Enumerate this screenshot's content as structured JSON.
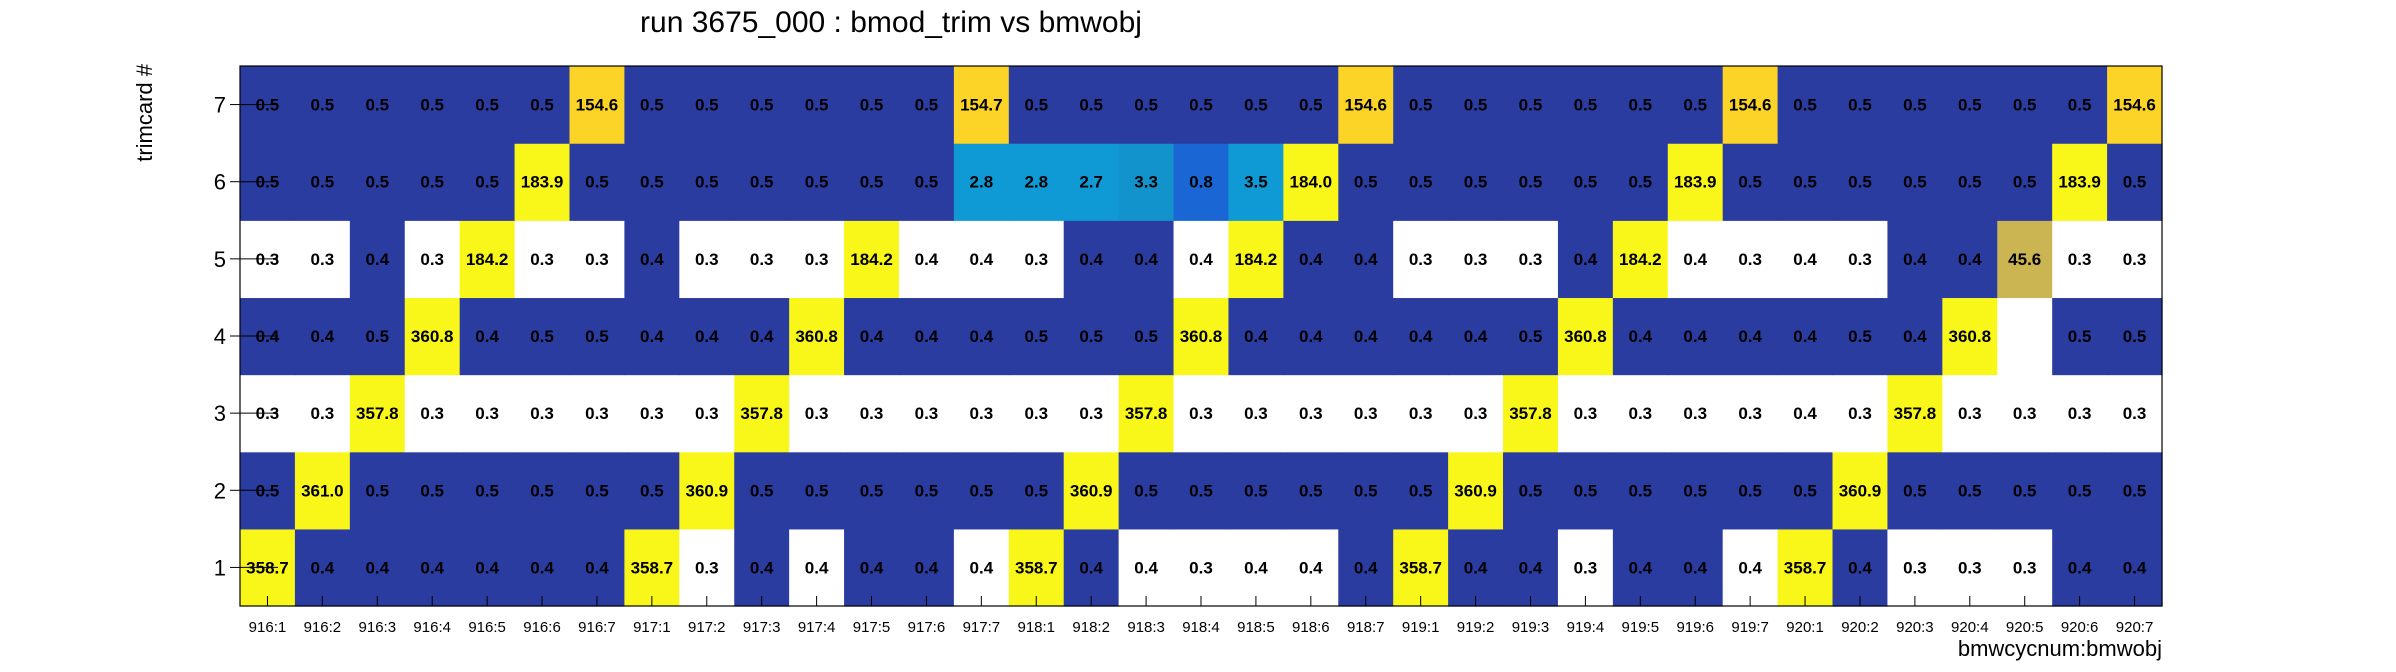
{
  "chart_data": {
    "type": "heatmap",
    "title": "run 3675_000 : bmod_trim vs bmwobj",
    "xlabel": "bmwcycnum:bmwobj",
    "ylabel": "trimcard #",
    "categories": [
      "916:1",
      "916:2",
      "916:3",
      "916:4",
      "916:5",
      "916:6",
      "916:7",
      "917:1",
      "917:2",
      "917:3",
      "917:4",
      "917:5",
      "917:6",
      "917:7",
      "918:1",
      "918:2",
      "918:3",
      "918:4",
      "918:5",
      "918:6",
      "918:7",
      "919:1",
      "919:2",
      "919:3",
      "919:4",
      "919:5",
      "919:6",
      "919:7",
      "920:1",
      "920:2",
      "920:3",
      "920:4",
      "920:5",
      "920:6",
      "920:7"
    ],
    "y_categories": [
      "1",
      "2",
      "3",
      "4",
      "5",
      "6",
      "7"
    ],
    "rows": [
      {
        "y": "1",
        "values": [
          358.7,
          0.4,
          0.4,
          0.4,
          0.4,
          0.4,
          0.4,
          358.7,
          0.3,
          0.4,
          0.4,
          0.4,
          0.4,
          0.4,
          358.7,
          0.4,
          0.4,
          0.3,
          0.4,
          0.4,
          0.4,
          358.7,
          0.4,
          0.4,
          0.3,
          0.4,
          0.4,
          0.4,
          358.7,
          0.4,
          0.3,
          0.3,
          0.3,
          0.4,
          0.4
        ]
      },
      {
        "y": "2",
        "values": [
          0.5,
          361.0,
          0.5,
          0.5,
          0.5,
          0.5,
          0.5,
          0.5,
          360.9,
          0.5,
          0.5,
          0.5,
          0.5,
          0.5,
          0.5,
          360.9,
          0.5,
          0.5,
          0.5,
          0.5,
          0.5,
          0.5,
          360.9,
          0.5,
          0.5,
          0.5,
          0.5,
          0.5,
          0.5,
          360.9,
          0.5,
          0.5,
          0.5,
          0.5,
          0.5
        ]
      },
      {
        "y": "3",
        "values": [
          0.3,
          0.3,
          357.8,
          0.3,
          0.3,
          0.3,
          0.3,
          0.3,
          0.3,
          357.8,
          0.3,
          0.3,
          0.3,
          0.3,
          0.3,
          0.3,
          357.8,
          0.3,
          0.3,
          0.3,
          0.3,
          0.3,
          0.3,
          357.8,
          0.3,
          0.3,
          0.3,
          0.3,
          0.4,
          0.3,
          357.8,
          0.3,
          0.3,
          0.3,
          0.3
        ]
      },
      {
        "y": "4",
        "values": [
          0.4,
          0.4,
          0.5,
          360.8,
          0.4,
          0.5,
          0.5,
          0.4,
          0.4,
          0.4,
          360.8,
          0.4,
          0.4,
          0.4,
          0.5,
          0.5,
          0.5,
          360.8,
          0.4,
          0.4,
          0.4,
          0.4,
          0.4,
          0.5,
          360.8,
          0.4,
          0.4,
          0.4,
          0.4,
          0.5,
          0.4,
          360.8,
          null,
          0.5,
          0.5
        ]
      },
      {
        "y": "5",
        "values": [
          0.3,
          0.3,
          0.4,
          0.3,
          184.2,
          0.3,
          0.3,
          0.4,
          0.3,
          0.3,
          0.3,
          184.2,
          0.4,
          0.4,
          0.3,
          0.4,
          0.4,
          0.4,
          184.2,
          0.4,
          0.4,
          0.3,
          0.3,
          0.3,
          0.4,
          184.2,
          0.4,
          0.3,
          0.4,
          0.3,
          0.4,
          0.4,
          45.6,
          0.3,
          0.3
        ]
      },
      {
        "y": "6",
        "values": [
          0.5,
          0.5,
          0.5,
          0.5,
          0.5,
          183.9,
          0.5,
          0.5,
          0.5,
          0.5,
          0.5,
          0.5,
          0.5,
          2.8,
          2.8,
          2.7,
          3.3,
          0.8,
          3.5,
          184.0,
          0.5,
          0.5,
          0.5,
          0.5,
          0.5,
          0.5,
          183.9,
          0.5,
          0.5,
          0.5,
          0.5,
          0.5,
          0.5,
          183.9,
          0.5
        ]
      },
      {
        "y": "7",
        "values": [
          0.5,
          0.5,
          0.5,
          0.5,
          0.5,
          0.5,
          154.6,
          0.5,
          0.5,
          0.5,
          0.5,
          0.5,
          0.5,
          154.7,
          0.5,
          0.5,
          0.5,
          0.5,
          0.5,
          0.5,
          154.6,
          0.5,
          0.5,
          0.5,
          0.5,
          0.5,
          0.5,
          154.6,
          0.5,
          0.5,
          0.5,
          0.5,
          0.5,
          0.5,
          154.6
        ]
      }
    ],
    "colors": {
      "low_dark": "#2b3ca0",
      "low_white": "#ffffff",
      "mid_low": "#1a66d4",
      "mid_cyan_dark": "#1393cc",
      "mid_cyan": "#0f9ad6",
      "mid_tan": "#cbb452",
      "high_yellow": "#f9f71a",
      "high_gold": "#fcd427"
    },
    "legend": "none"
  }
}
